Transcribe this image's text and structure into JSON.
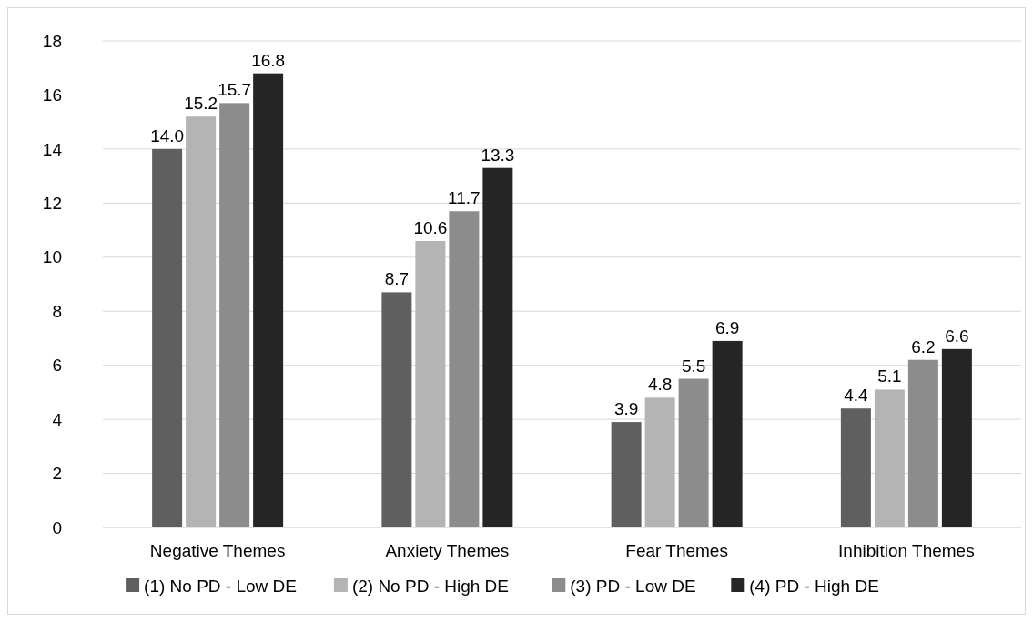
{
  "chart_data": {
    "type": "bar",
    "categories": [
      "Negative Themes",
      "Anxiety Themes",
      "Fear Themes",
      "Inhibition Themes"
    ],
    "series": [
      {
        "name": "(1) No PD - Low DE",
        "color": "#5f5f5f",
        "values": [
          14.0,
          8.7,
          3.9,
          4.4
        ],
        "value_labels": [
          "14.0",
          "8.7",
          "3.9",
          "4.4"
        ]
      },
      {
        "name": "(2) No PD - High DE",
        "color": "#b4b4b4",
        "values": [
          15.2,
          10.6,
          4.8,
          5.1
        ],
        "value_labels": [
          "15.2",
          "10.6",
          "4.8",
          "5.1"
        ]
      },
      {
        "name": "(3) PD - Low DE",
        "color": "#8c8c8c",
        "values": [
          15.7,
          11.7,
          5.5,
          6.2
        ],
        "value_labels": [
          "15.7",
          "11.7",
          "5.5",
          "6.2"
        ]
      },
      {
        "name": "(4) PD - High DE",
        "color": "#262626",
        "values": [
          16.8,
          13.3,
          6.9,
          6.6
        ],
        "value_labels": [
          "16.8",
          "13.3",
          "6.9",
          "6.6"
        ]
      }
    ],
    "ylim": [
      0,
      18
    ],
    "yticks": [
      0,
      2,
      4,
      6,
      8,
      10,
      12,
      14,
      16,
      18
    ],
    "grid": "y",
    "legend": "bottom"
  }
}
